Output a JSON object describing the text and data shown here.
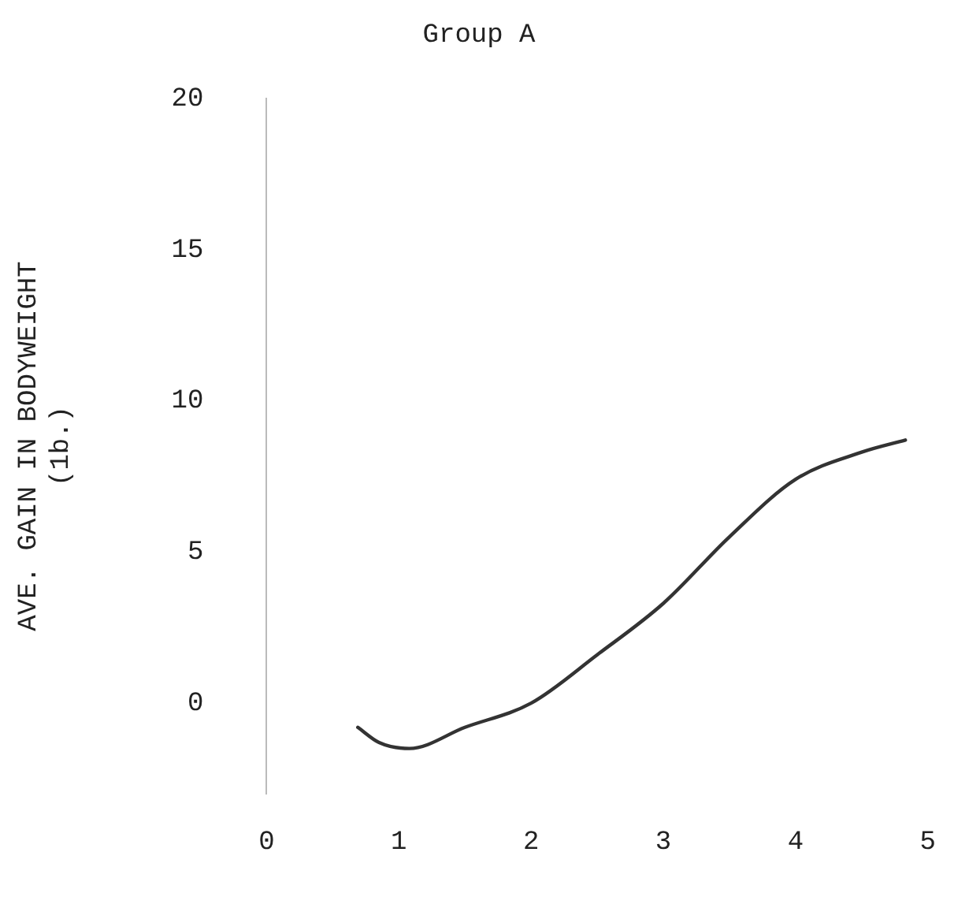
{
  "chart_data": {
    "type": "line",
    "title": "Group A",
    "ylabel": "AVE. GAIN IN BODYWEIGHT\n(1b.)",
    "x": [
      0.69,
      0.85,
      1.08,
      1.5,
      2.0,
      2.5,
      3.0,
      3.5,
      4.0,
      4.5,
      4.83
    ],
    "series": [
      {
        "color": "#333333",
        "values": [
          -0.8,
          -1.3,
          -1.5,
          -0.8,
          0.0,
          1.6,
          3.3,
          5.5,
          7.4,
          8.3,
          8.7
        ]
      }
    ],
    "xlim": [
      0,
      5
    ],
    "ylim": [
      -3,
      20
    ],
    "xticks": [
      0,
      1,
      2,
      3,
      4,
      5
    ],
    "yticks": [
      0,
      5,
      10,
      15,
      20
    ],
    "grid": false,
    "legend": false,
    "marker": "none",
    "line_style": "solid"
  }
}
